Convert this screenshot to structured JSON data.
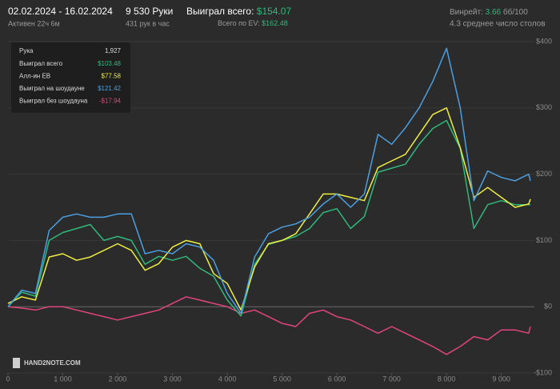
{
  "header": {
    "date_range": "02.02.2024 - 16.02.2024",
    "active": "Активен 22ч 6м",
    "hands": "9 530 Руки",
    "rate": "431 рук в час",
    "won_label": "Выиграл всего:",
    "won_value": "$154.07",
    "ev_label": "Всего по EV:",
    "ev_value": "$162.48",
    "winrate_label": "Винрейт:",
    "winrate_value": "3.66",
    "winrate_unit": "бб/100",
    "tables": "4.3 среднее число столов"
  },
  "logo": "HAND2NOTE.COM",
  "chart_data": {
    "type": "line",
    "x": [
      0,
      250,
      500,
      750,
      1000,
      1250,
      1500,
      1750,
      2000,
      2250,
      2500,
      2750,
      3000,
      3250,
      3500,
      3750,
      4000,
      4250,
      4500,
      4750,
      5000,
      5250,
      5500,
      5750,
      6000,
      6250,
      6500,
      6750,
      7000,
      7250,
      7500,
      7750,
      8000,
      8250,
      8500,
      8750,
      9000,
      9250,
      9500,
      9530
    ],
    "series": [
      {
        "name": "Выиграл всего",
        "color": "#2fb87c",
        "values": [
          0,
          22,
          16,
          100,
          112,
          118,
          124,
          100,
          106,
          100,
          64,
          76,
          70,
          76,
          58,
          46,
          10,
          -14,
          64,
          94,
          100,
          106,
          118,
          142,
          148,
          118,
          136,
          203,
          209,
          215,
          245,
          269,
          281,
          239,
          118,
          154,
          160,
          154,
          154,
          154.07
        ]
      },
      {
        "name": "Алл-ин EB",
        "color": "#eeee40",
        "values": [
          5,
          15,
          10,
          75,
          80,
          70,
          75,
          85,
          95,
          85,
          55,
          65,
          90,
          100,
          95,
          50,
          35,
          -5,
          60,
          95,
          100,
          110,
          140,
          170,
          170,
          165,
          160,
          210,
          220,
          230,
          260,
          290,
          300,
          240,
          165,
          180,
          165,
          150,
          155,
          162.48
        ]
      },
      {
        "name": "Выиграл на шоудауне",
        "color": "#4b9fe1",
        "values": [
          0,
          25,
          20,
          115,
          135,
          140,
          135,
          135,
          140,
          140,
          80,
          85,
          80,
          95,
          90,
          70,
          20,
          -10,
          75,
          110,
          120,
          125,
          135,
          155,
          170,
          150,
          170,
          260,
          245,
          270,
          300,
          340,
          390,
          300,
          160,
          205,
          195,
          190,
          200,
          190
        ]
      },
      {
        "name": "Выиграл без шоудауна",
        "color": "#e0457d",
        "values": [
          0,
          -2,
          -5,
          0,
          0,
          -5,
          -10,
          -15,
          -20,
          -15,
          -10,
          -5,
          5,
          15,
          10,
          5,
          0,
          -10,
          -5,
          -15,
          -25,
          -30,
          -10,
          -5,
          -15,
          -20,
          -30,
          -40,
          -30,
          -40,
          -50,
          -60,
          -72,
          -60,
          -45,
          -50,
          -35,
          -35,
          -40,
          -30
        ]
      }
    ],
    "xlim": [
      0,
      9530
    ],
    "xticks": [
      0,
      {
        "value": 1000,
        "label": "1 000"
      },
      {
        "value": 2000,
        "label": "2 000"
      },
      {
        "value": 3000,
        "label": "3 000"
      },
      {
        "value": 4000,
        "label": "4 000"
      },
      {
        "value": 5000,
        "label": "5 000"
      },
      {
        "value": 6000,
        "label": "6 000"
      },
      {
        "value": 7000,
        "label": "7 000"
      },
      {
        "value": 8000,
        "label": "8 000"
      },
      {
        "value": 9000,
        "label": "9 000"
      }
    ],
    "ylim": [
      -100,
      400
    ],
    "yticks": [
      {
        "value": -100,
        "label": "-$100"
      },
      {
        "value": 0,
        "label": "$0"
      },
      {
        "value": 100,
        "label": "$100"
      },
      {
        "value": 200,
        "label": "$200"
      },
      {
        "value": 300,
        "label": "$300"
      },
      {
        "value": 400,
        "label": "$400"
      }
    ],
    "grid": true,
    "tooltip": {
      "hand_label": "Рука",
      "hand": "1,927",
      "series_values": [
        "$103.48",
        "$77.58",
        "$121.42",
        "-$17.94"
      ]
    }
  }
}
